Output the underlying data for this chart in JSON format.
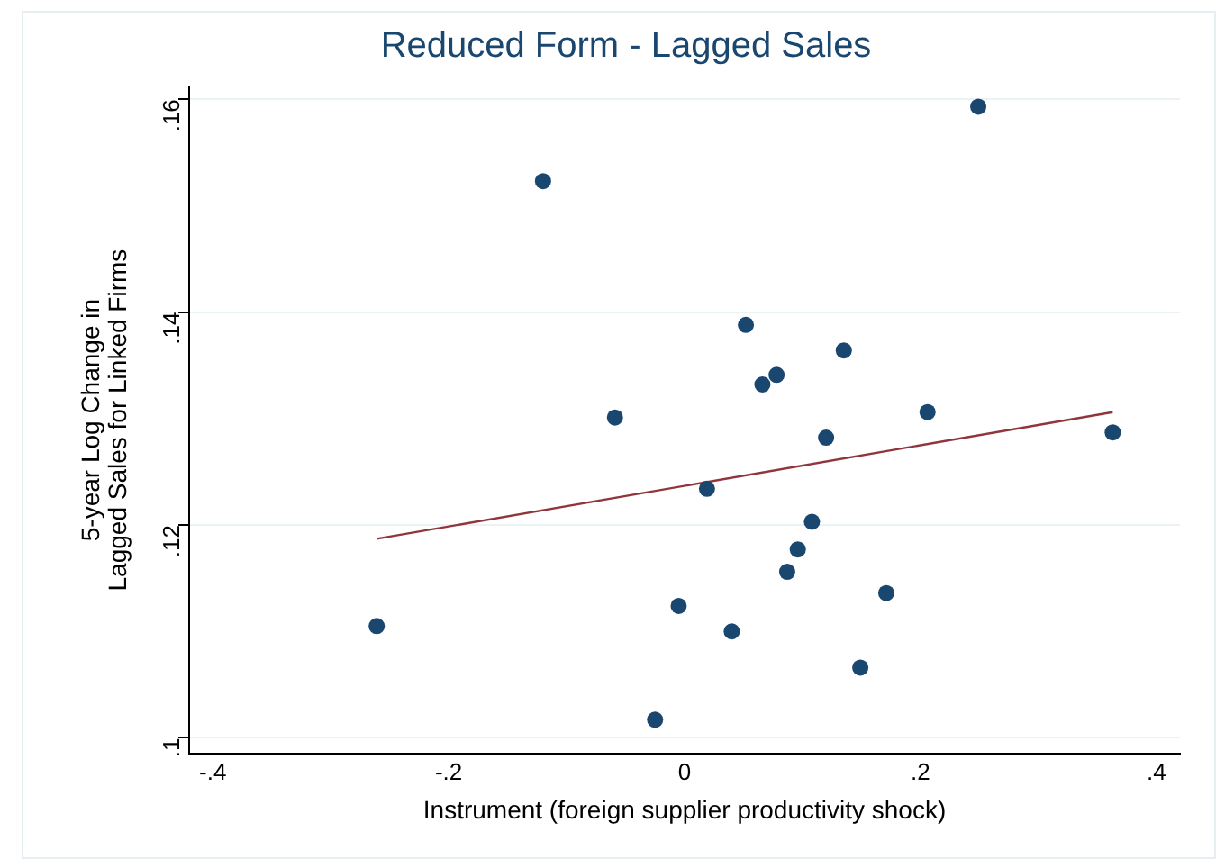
{
  "chart_data": {
    "type": "scatter",
    "title": "Reduced Form - Lagged Sales",
    "xlabel": "Instrument (foreign supplier productivity shock)",
    "ylabel": "5-year Log Change in\nLagged Sales for Linked Firms",
    "xlim": [
      -0.42,
      0.42
    ],
    "ylim": [
      0.0985,
      0.1612
    ],
    "xticks": [
      {
        "value": -0.4,
        "label": "-.4"
      },
      {
        "value": -0.2,
        "label": "-.2"
      },
      0,
      {
        "value": 0.2,
        "label": ".2"
      },
      {
        "value": 0.4,
        "label": ".4"
      }
    ],
    "yticks": [
      {
        "value": 0.1,
        "label": ".1"
      },
      {
        "value": 0.12,
        "label": ".12"
      },
      {
        "value": 0.14,
        "label": ".14"
      },
      {
        "value": 0.16,
        "label": ".16"
      }
    ],
    "grid": "y",
    "legend": false,
    "series": [
      {
        "marker": "circle",
        "color": "#1a476f",
        "x": [
          -0.261,
          -0.12,
          -0.059,
          -0.025,
          -0.005,
          0.019,
          0.04,
          0.052,
          0.066,
          0.078,
          0.087,
          0.096,
          0.108,
          0.12,
          0.135,
          0.149,
          0.171,
          0.206,
          0.249,
          0.363
        ],
        "values": [
          0.1105,
          0.1523,
          0.1301,
          0.1017,
          0.1124,
          0.1234,
          0.11,
          0.1388,
          0.1332,
          0.1341,
          0.1156,
          0.1177,
          0.1203,
          0.1282,
          0.1364,
          0.1066,
          0.1136,
          0.1306,
          0.1593,
          0.1287
        ]
      },
      {
        "type": "line",
        "marker": "none",
        "color": "#90353b",
        "x": [
          -0.261,
          0.363
        ],
        "values": [
          0.1187,
          0.1306
        ]
      }
    ]
  }
}
